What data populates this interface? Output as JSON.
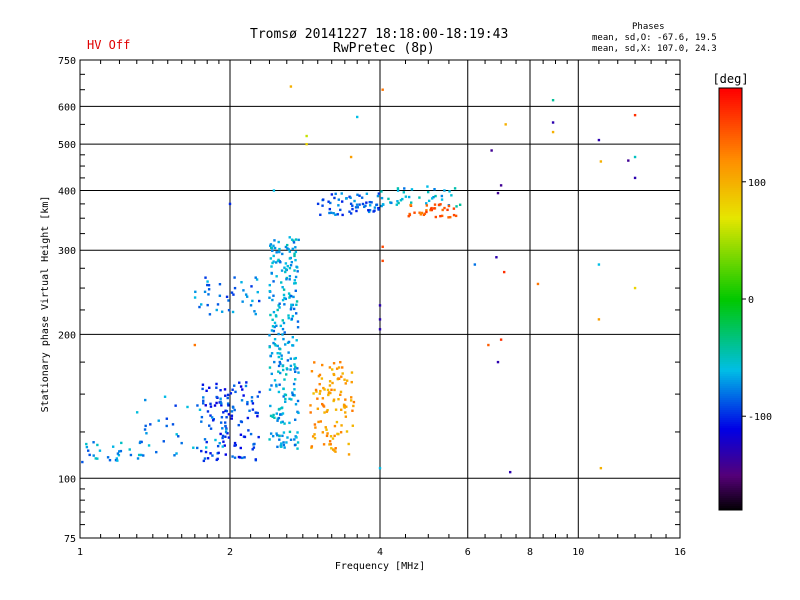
{
  "header": {
    "status": "HV Off",
    "status_color": "#e00000",
    "title": "Tromsø 20141227 18:18:00-18:19:43",
    "subtitle": "RwPretec (8p)",
    "stats_title": "Phases",
    "stats_o": "mean, sd,O: -67.6, 19.5",
    "stats_x": "mean, sd,X: 107.0, 24.3"
  },
  "chart_data": {
    "type": "scatter",
    "title": "Tromsø 20141227 18:18:00-18:19:43",
    "subtitle": "RwPretec (8p)",
    "xlabel": "Frequency [MHz]",
    "ylabel": "Stationary phase Virtual Height [km]",
    "x_scale": "log",
    "y_scale": "log",
    "xlim": [
      1,
      16
    ],
    "ylim": [
      75,
      750
    ],
    "x_ticks": [
      1,
      2,
      4,
      6,
      8,
      10,
      16
    ],
    "y_ticks": [
      75,
      100,
      200,
      300,
      400,
      500,
      600,
      750
    ],
    "grid": true,
    "colorbar": {
      "label": "[deg]",
      "range": [
        -180,
        180
      ],
      "ticks": [
        100,
        0,
        -100
      ]
    },
    "clusters": [
      {
        "name": "low-band O trace",
        "x": [
          1.0,
          1.35
        ],
        "y": [
          108,
          120
        ],
        "phase": -70,
        "count": 30
      },
      {
        "name": "blue cloud",
        "x": [
          1.75,
          2.3
        ],
        "y": [
          108,
          160
        ],
        "phase": -95,
        "count": 120
      },
      {
        "name": "cyan spread",
        "x": [
          1.3,
          2.0
        ],
        "y": [
          110,
          150
        ],
        "phase": -75,
        "count": 40
      },
      {
        "name": "upper O trace",
        "x": [
          1.7,
          2.3
        ],
        "y": [
          220,
          265
        ],
        "phase": -80,
        "count": 40
      },
      {
        "name": "main O column",
        "x": [
          2.4,
          2.75
        ],
        "y": [
          115,
          320
        ],
        "phase": -65,
        "count": 260
      },
      {
        "name": "X trace",
        "x": [
          2.9,
          3.55
        ],
        "y": [
          112,
          175
        ],
        "phase": 110,
        "count": 110
      },
      {
        "name": "F-region trace",
        "x": [
          3.0,
          4.0
        ],
        "y": [
          355,
          395
        ],
        "phase": -85,
        "count": 60
      },
      {
        "name": "F-region high",
        "x": [
          4.0,
          5.8
        ],
        "y": [
          370,
          410
        ],
        "phase": -60,
        "count": 40
      },
      {
        "name": "F-region X",
        "x": [
          4.5,
          5.7
        ],
        "y": [
          350,
          375
        ],
        "phase": 140,
        "count": 35
      }
    ],
    "points": [
      {
        "x": 2.65,
        "y": 660,
        "phase": 100
      },
      {
        "x": 4.05,
        "y": 650,
        "phase": 130
      },
      {
        "x": 3.6,
        "y": 570,
        "phase": -60
      },
      {
        "x": 2.85,
        "y": 520,
        "phase": 60
      },
      {
        "x": 2.85,
        "y": 500,
        "phase": 80
      },
      {
        "x": 3.5,
        "y": 470,
        "phase": 110
      },
      {
        "x": 7.15,
        "y": 550,
        "phase": 100
      },
      {
        "x": 8.9,
        "y": 618,
        "phase": -40
      },
      {
        "x": 8.9,
        "y": 555,
        "phase": -130
      },
      {
        "x": 8.9,
        "y": 530,
        "phase": 100
      },
      {
        "x": 11.0,
        "y": 510,
        "phase": -130
      },
      {
        "x": 13.0,
        "y": 575,
        "phase": 160
      },
      {
        "x": 12.6,
        "y": 462,
        "phase": -140
      },
      {
        "x": 13.0,
        "y": 470,
        "phase": -50
      },
      {
        "x": 13.0,
        "y": 425,
        "phase": -130
      },
      {
        "x": 11.1,
        "y": 460,
        "phase": 100
      },
      {
        "x": 6.7,
        "y": 485,
        "phase": -140
      },
      {
        "x": 7.0,
        "y": 410,
        "phase": -140
      },
      {
        "x": 6.9,
        "y": 395,
        "phase": -140
      },
      {
        "x": 6.2,
        "y": 280,
        "phase": -80
      },
      {
        "x": 6.85,
        "y": 290,
        "phase": -130
      },
      {
        "x": 7.1,
        "y": 270,
        "phase": 160
      },
      {
        "x": 8.3,
        "y": 255,
        "phase": 130
      },
      {
        "x": 11.0,
        "y": 280,
        "phase": -60
      },
      {
        "x": 13.0,
        "y": 250,
        "phase": 80
      },
      {
        "x": 11.0,
        "y": 215,
        "phase": 110
      },
      {
        "x": 6.6,
        "y": 190,
        "phase": 140
      },
      {
        "x": 7.0,
        "y": 195,
        "phase": 160
      },
      {
        "x": 6.9,
        "y": 175,
        "phase": -130
      },
      {
        "x": 4.0,
        "y": 230,
        "phase": -130
      },
      {
        "x": 4.0,
        "y": 215,
        "phase": -130
      },
      {
        "x": 4.0,
        "y": 205,
        "phase": -130
      },
      {
        "x": 4.05,
        "y": 285,
        "phase": 150
      },
      {
        "x": 4.05,
        "y": 305,
        "phase": 150
      },
      {
        "x": 2.45,
        "y": 400,
        "phase": -60
      },
      {
        "x": 2.0,
        "y": 375,
        "phase": -100
      },
      {
        "x": 1.7,
        "y": 190,
        "phase": 130
      },
      {
        "x": 4.0,
        "y": 105,
        "phase": -60
      },
      {
        "x": 7.3,
        "y": 103,
        "phase": -130
      },
      {
        "x": 11.1,
        "y": 105,
        "phase": 100
      }
    ]
  }
}
